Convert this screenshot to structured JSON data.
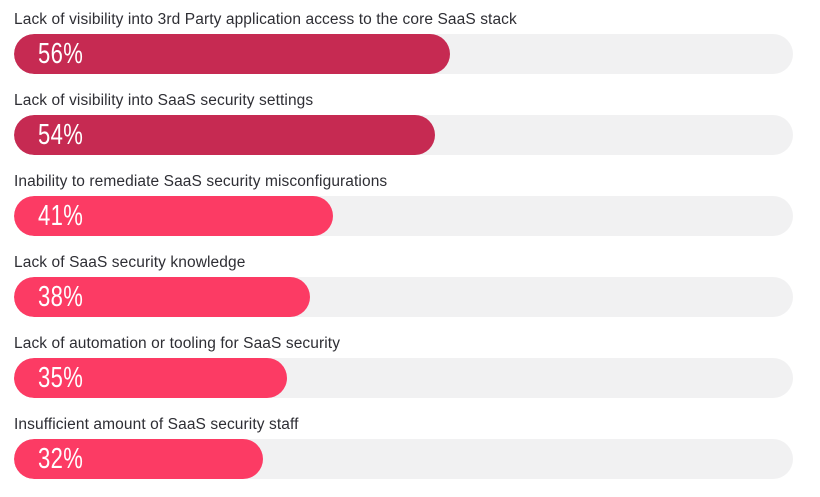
{
  "chart_data": {
    "type": "bar",
    "orientation": "horizontal",
    "title": "",
    "xlabel": "",
    "ylabel": "",
    "xlim": [
      0,
      100
    ],
    "grid": false,
    "legend": "none",
    "categories": [
      "Lack of visibility into 3rd Party application access to the core SaaS stack",
      "Lack of visibility into SaaS security settings",
      "Inability to remediate SaaS security misconfigurations",
      "Lack of SaaS security knowledge",
      "Lack of automation or tooling for SaaS security",
      "Insufficient amount of SaaS security staff"
    ],
    "values": [
      56,
      54,
      41,
      38,
      35,
      32
    ],
    "value_labels": [
      "56%",
      "54%",
      "41%",
      "38%",
      "35%",
      "32%"
    ],
    "bar_colors": [
      "#c62a52",
      "#c62a52",
      "#fc3b64",
      "#fc3b64",
      "#fc3b64",
      "#fc3b64"
    ],
    "track_color": "#f1f1f2",
    "value_label_color": "#ffffff",
    "category_label_color": "#2e2e34"
  }
}
